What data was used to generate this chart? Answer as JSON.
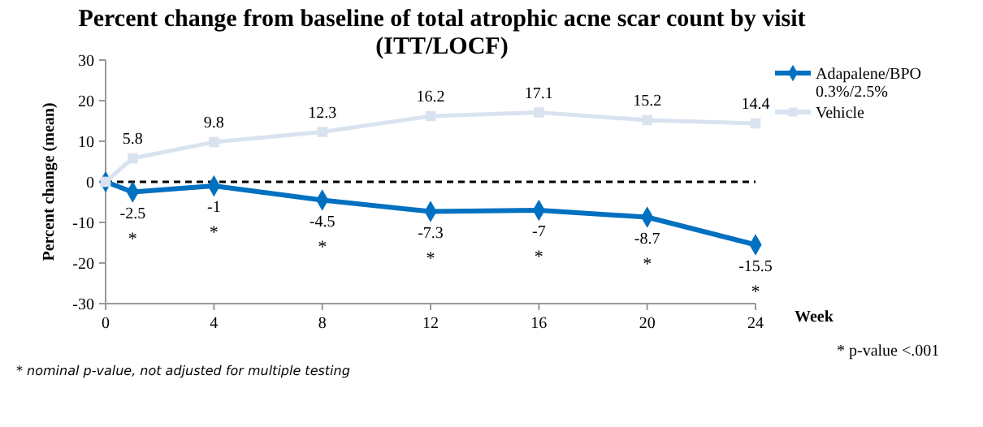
{
  "chart_data": {
    "type": "line",
    "title": "Percent change from baseline of total atrophic acne scar count by visit\n(ITT/LOCF)",
    "xlabel": "Week",
    "ylabel": "Percent change (mean)",
    "x": [
      0,
      1,
      4,
      8,
      12,
      16,
      20,
      24
    ],
    "series": [
      {
        "name": "Adapalene/BPO\n0.3%/2.5%",
        "color": "#0070c0",
        "marker": "diamond",
        "values": [
          0,
          -2.5,
          -1,
          -4.5,
          -7.3,
          -7,
          -8.7,
          -15.5
        ],
        "value_labels": [
          null,
          "-2.5",
          "-1",
          "-4.5",
          "-7.3",
          "-7",
          "-8.7",
          "-15.5"
        ]
      },
      {
        "name": "Vehicle",
        "color": "#d9e3f0",
        "marker": "square",
        "values": [
          0,
          5.8,
          9.8,
          12.3,
          16.2,
          17.1,
          15.2,
          14.4
        ],
        "value_labels": [
          null,
          "5.8",
          "9.8",
          "12.3",
          "16.2",
          "17.1",
          "15.2",
          "14.4"
        ]
      }
    ],
    "xlim": [
      0,
      24
    ],
    "xticks": [
      0,
      4,
      8,
      12,
      16,
      20,
      24
    ],
    "ylim": [
      -30,
      30
    ],
    "yticks": [
      -30,
      -20,
      -10,
      0,
      10,
      20,
      30
    ],
    "ref_lines": [
      {
        "axis": "y",
        "value": 0,
        "color": "#000000",
        "line_style": "dashed"
      }
    ],
    "legend": "right",
    "grid": false,
    "annotations": [
      {
        "text": "*",
        "x": 1,
        "y": -2.5
      },
      {
        "text": "*",
        "x": 4,
        "y": -1
      },
      {
        "text": "*",
        "x": 8,
        "y": -4.5
      },
      {
        "text": "*",
        "x": 12,
        "y": -7.3
      },
      {
        "text": "*",
        "x": 16,
        "y": -7
      },
      {
        "text": "*",
        "x": 20,
        "y": -8.7
      },
      {
        "text": "*",
        "x": 24,
        "y": -15.5
      },
      "* p-value <.001",
      "* nominal p-value, not adjusted for multiple testing"
    ]
  }
}
